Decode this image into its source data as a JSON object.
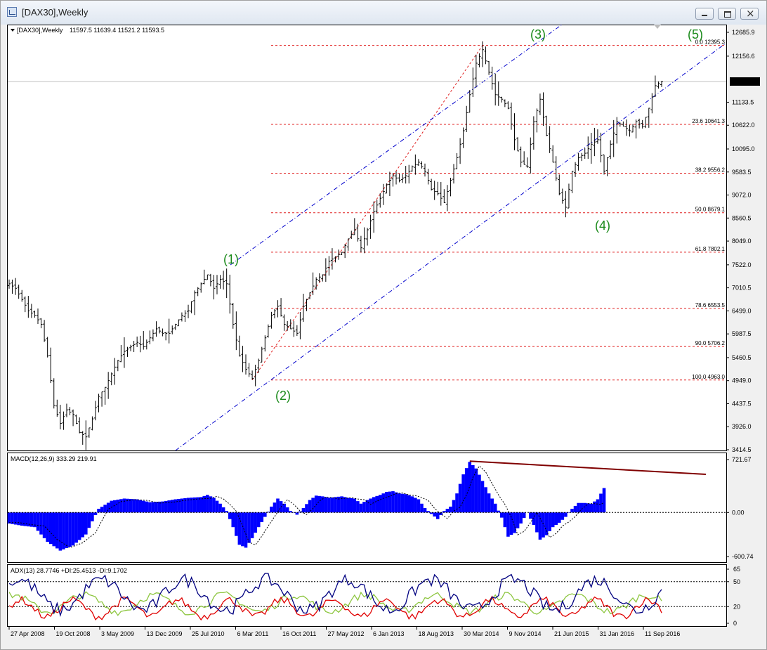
{
  "window": {
    "title": "[DAX30],Weekly"
  },
  "chart_data": [
    {
      "type": "candlestick",
      "panel": "price",
      "title": "[DAX30],Weekly",
      "ohlc_header": "11597.5 11639.4 11521.2 11593.5",
      "ohlc": {
        "open": 11597.5,
        "high": 11639.4,
        "low": 11521.2,
        "close": 11593.5
      },
      "current_price": "11593.5",
      "y_ticks": [
        "12685.9",
        "12156.6",
        "11133.5",
        "10622.0",
        "10095.0",
        "9583.5",
        "9072.0",
        "8560.5",
        "8049.0",
        "7522.0",
        "7010.5",
        "6499.0",
        "5987.5",
        "5460.5",
        "4949.0",
        "4437.5",
        "3926.0",
        "3414.5"
      ],
      "ylim": [
        3414.5,
        12685.9
      ],
      "x_labels": [
        "27 Apr 2008",
        "19 Oct 2008",
        "3 May 2009",
        "13 Dec 2009",
        "25 Jul 2010",
        "6 Mar 2011",
        "16 Oct 2011",
        "27 May 2012",
        "6 Jan 2013",
        "18 Aug 2013",
        "30 Mar 2014",
        "9 Nov 2014",
        "21 Jun 2015",
        "31 Jan 2016",
        "11 Sep 2016"
      ],
      "price_path": [
        [
          0,
          7100
        ],
        [
          2,
          7000
        ],
        [
          4,
          6750
        ],
        [
          6,
          6500
        ],
        [
          8,
          6400
        ],
        [
          10,
          6200
        ],
        [
          12,
          5500
        ],
        [
          14,
          4400
        ],
        [
          16,
          4000
        ],
        [
          18,
          4300
        ],
        [
          20,
          4200
        ],
        [
          22,
          3800
        ],
        [
          24,
          3700
        ],
        [
          26,
          4100
        ],
        [
          28,
          4600
        ],
        [
          30,
          4800
        ],
        [
          32,
          5100
        ],
        [
          34,
          5400
        ],
        [
          36,
          5600
        ],
        [
          38,
          5700
        ],
        [
          40,
          5800
        ],
        [
          42,
          5700
        ],
        [
          44,
          5900
        ],
        [
          46,
          6100
        ],
        [
          48,
          6000
        ],
        [
          50,
          6000
        ],
        [
          52,
          6200
        ],
        [
          54,
          6400
        ],
        [
          56,
          6500
        ],
        [
          58,
          6900
        ],
        [
          60,
          7100
        ],
        [
          62,
          7300
        ],
        [
          64,
          7000
        ],
        [
          66,
          7200
        ],
        [
          68,
          7100
        ],
        [
          70,
          6200
        ],
        [
          72,
          5500
        ],
        [
          74,
          5200
        ],
        [
          76,
          5000
        ],
        [
          78,
          5400
        ],
        [
          80,
          5900
        ],
        [
          82,
          6400
        ],
        [
          84,
          6600
        ],
        [
          86,
          6200
        ],
        [
          88,
          6100
        ],
        [
          90,
          6000
        ],
        [
          92,
          6600
        ],
        [
          94,
          6900
        ],
        [
          96,
          7200
        ],
        [
          98,
          7300
        ],
        [
          100,
          7600
        ],
        [
          102,
          7700
        ],
        [
          104,
          7800
        ],
        [
          106,
          8100
        ],
        [
          108,
          8300
        ],
        [
          110,
          7900
        ],
        [
          112,
          8300
        ],
        [
          114,
          8700
        ],
        [
          116,
          9000
        ],
        [
          118,
          9300
        ],
        [
          120,
          9500
        ],
        [
          122,
          9400
        ],
        [
          124,
          9500
        ],
        [
          126,
          9700
        ],
        [
          128,
          9800
        ],
        [
          130,
          9600
        ],
        [
          132,
          9200
        ],
        [
          134,
          9100
        ],
        [
          136,
          8900
        ],
        [
          138,
          9400
        ],
        [
          140,
          9900
        ],
        [
          142,
          10500
        ],
        [
          144,
          11300
        ],
        [
          146,
          12000
        ],
        [
          148,
          12300
        ],
        [
          150,
          11800
        ],
        [
          152,
          11300
        ],
        [
          154,
          11200
        ],
        [
          156,
          11000
        ],
        [
          158,
          10300
        ],
        [
          160,
          9800
        ],
        [
          162,
          9700
        ],
        [
          164,
          10700
        ],
        [
          166,
          11200
        ],
        [
          168,
          10400
        ],
        [
          170,
          9800
        ],
        [
          172,
          9100
        ],
        [
          174,
          8800
        ],
        [
          176,
          9600
        ],
        [
          178,
          9900
        ],
        [
          180,
          10000
        ],
        [
          182,
          10200
        ],
        [
          184,
          10300
        ],
        [
          186,
          9600
        ],
        [
          188,
          10200
        ],
        [
          190,
          10700
        ],
        [
          192,
          10600
        ],
        [
          194,
          10500
        ],
        [
          196,
          10700
        ],
        [
          198,
          10600
        ],
        [
          200,
          11000
        ],
        [
          202,
          11500
        ],
        [
          204,
          11593.5
        ]
      ],
      "fibonacci": [
        {
          "label": "0.0 12395.3",
          "price": 12395.3
        },
        {
          "label": "23.6 10641.3",
          "price": 10641.3
        },
        {
          "label": "38.2 9556.2",
          "price": 9556.2
        },
        {
          "label": "50.0 8679.1",
          "price": 8679.1
        },
        {
          "label": "61.8 7802.1",
          "price": 7802.1
        },
        {
          "label": "78.6 6553.5",
          "price": 6553.5
        },
        {
          "label": "90.0 5706.2",
          "price": 5706.2
        },
        {
          "label": "100.0 4963.0",
          "price": 4963.0
        }
      ],
      "wave_labels": [
        "(1)",
        "(2)",
        "(3)",
        "(4)",
        "(5)"
      ],
      "colors": {
        "bars": "#000000",
        "fib": "#e02020",
        "channel": "#0000cc",
        "waves": "#1a8a1a"
      }
    },
    {
      "type": "histogram",
      "panel": "macd",
      "title": "MACD(12,26,9) 333.29 219.91",
      "y_ticks": [
        "721.67",
        "0.00",
        "-600.74"
      ],
      "ylim": [
        -600.74,
        721.67
      ],
      "macd_path": [
        [
          0,
          -150
        ],
        [
          4,
          -180
        ],
        [
          8,
          -200
        ],
        [
          12,
          -400
        ],
        [
          16,
          -520
        ],
        [
          20,
          -450
        ],
        [
          24,
          -300
        ],
        [
          26,
          -120
        ],
        [
          28,
          50
        ],
        [
          32,
          160
        ],
        [
          36,
          190
        ],
        [
          40,
          180
        ],
        [
          44,
          140
        ],
        [
          48,
          150
        ],
        [
          52,
          180
        ],
        [
          56,
          200
        ],
        [
          60,
          210
        ],
        [
          62,
          240
        ],
        [
          64,
          200
        ],
        [
          66,
          120
        ],
        [
          68,
          20
        ],
        [
          70,
          -200
        ],
        [
          72,
          -440
        ],
        [
          74,
          -480
        ],
        [
          76,
          -350
        ],
        [
          78,
          -200
        ],
        [
          80,
          -60
        ],
        [
          82,
          80
        ],
        [
          84,
          190
        ],
        [
          86,
          120
        ],
        [
          88,
          20
        ],
        [
          90,
          -30
        ],
        [
          92,
          60
        ],
        [
          94,
          170
        ],
        [
          96,
          230
        ],
        [
          98,
          220
        ],
        [
          100,
          200
        ],
        [
          102,
          210
        ],
        [
          104,
          220
        ],
        [
          106,
          200
        ],
        [
          108,
          190
        ],
        [
          110,
          120
        ],
        [
          112,
          170
        ],
        [
          114,
          210
        ],
        [
          116,
          240
        ],
        [
          118,
          280
        ],
        [
          120,
          290
        ],
        [
          122,
          260
        ],
        [
          124,
          250
        ],
        [
          126,
          220
        ],
        [
          128,
          180
        ],
        [
          130,
          60
        ],
        [
          132,
          -20
        ],
        [
          134,
          -90
        ],
        [
          136,
          20
        ],
        [
          138,
          80
        ],
        [
          140,
          260
        ],
        [
          142,
          520
        ],
        [
          144,
          690
        ],
        [
          146,
          600
        ],
        [
          148,
          430
        ],
        [
          150,
          260
        ],
        [
          152,
          120
        ],
        [
          154,
          -70
        ],
        [
          156,
          -330
        ],
        [
          158,
          -280
        ],
        [
          160,
          -150
        ],
        [
          162,
          0
        ],
        [
          164,
          -170
        ],
        [
          166,
          -370
        ],
        [
          168,
          -310
        ],
        [
          170,
          -200
        ],
        [
          172,
          -140
        ],
        [
          174,
          -60
        ],
        [
          176,
          50
        ],
        [
          178,
          130
        ],
        [
          180,
          130
        ],
        [
          182,
          120
        ],
        [
          184,
          180
        ],
        [
          186,
          333.29
        ]
      ],
      "colors": {
        "histogram": "#0000ff",
        "signal": "#000000",
        "divergence": "#800000"
      }
    },
    {
      "type": "line",
      "panel": "adx",
      "title": "ADX(13) 28.7746 +DI:25.4513 -DI:9.1702",
      "y_ticks": [
        "65",
        "50",
        "20",
        "0"
      ],
      "ylim": [
        0,
        65
      ],
      "series": [
        {
          "name": "ADX(13)",
          "color": "#000080"
        },
        {
          "name": "+DI",
          "color": "#8dc63f"
        },
        {
          "name": "-DI",
          "color": "#e00000"
        }
      ]
    }
  ]
}
